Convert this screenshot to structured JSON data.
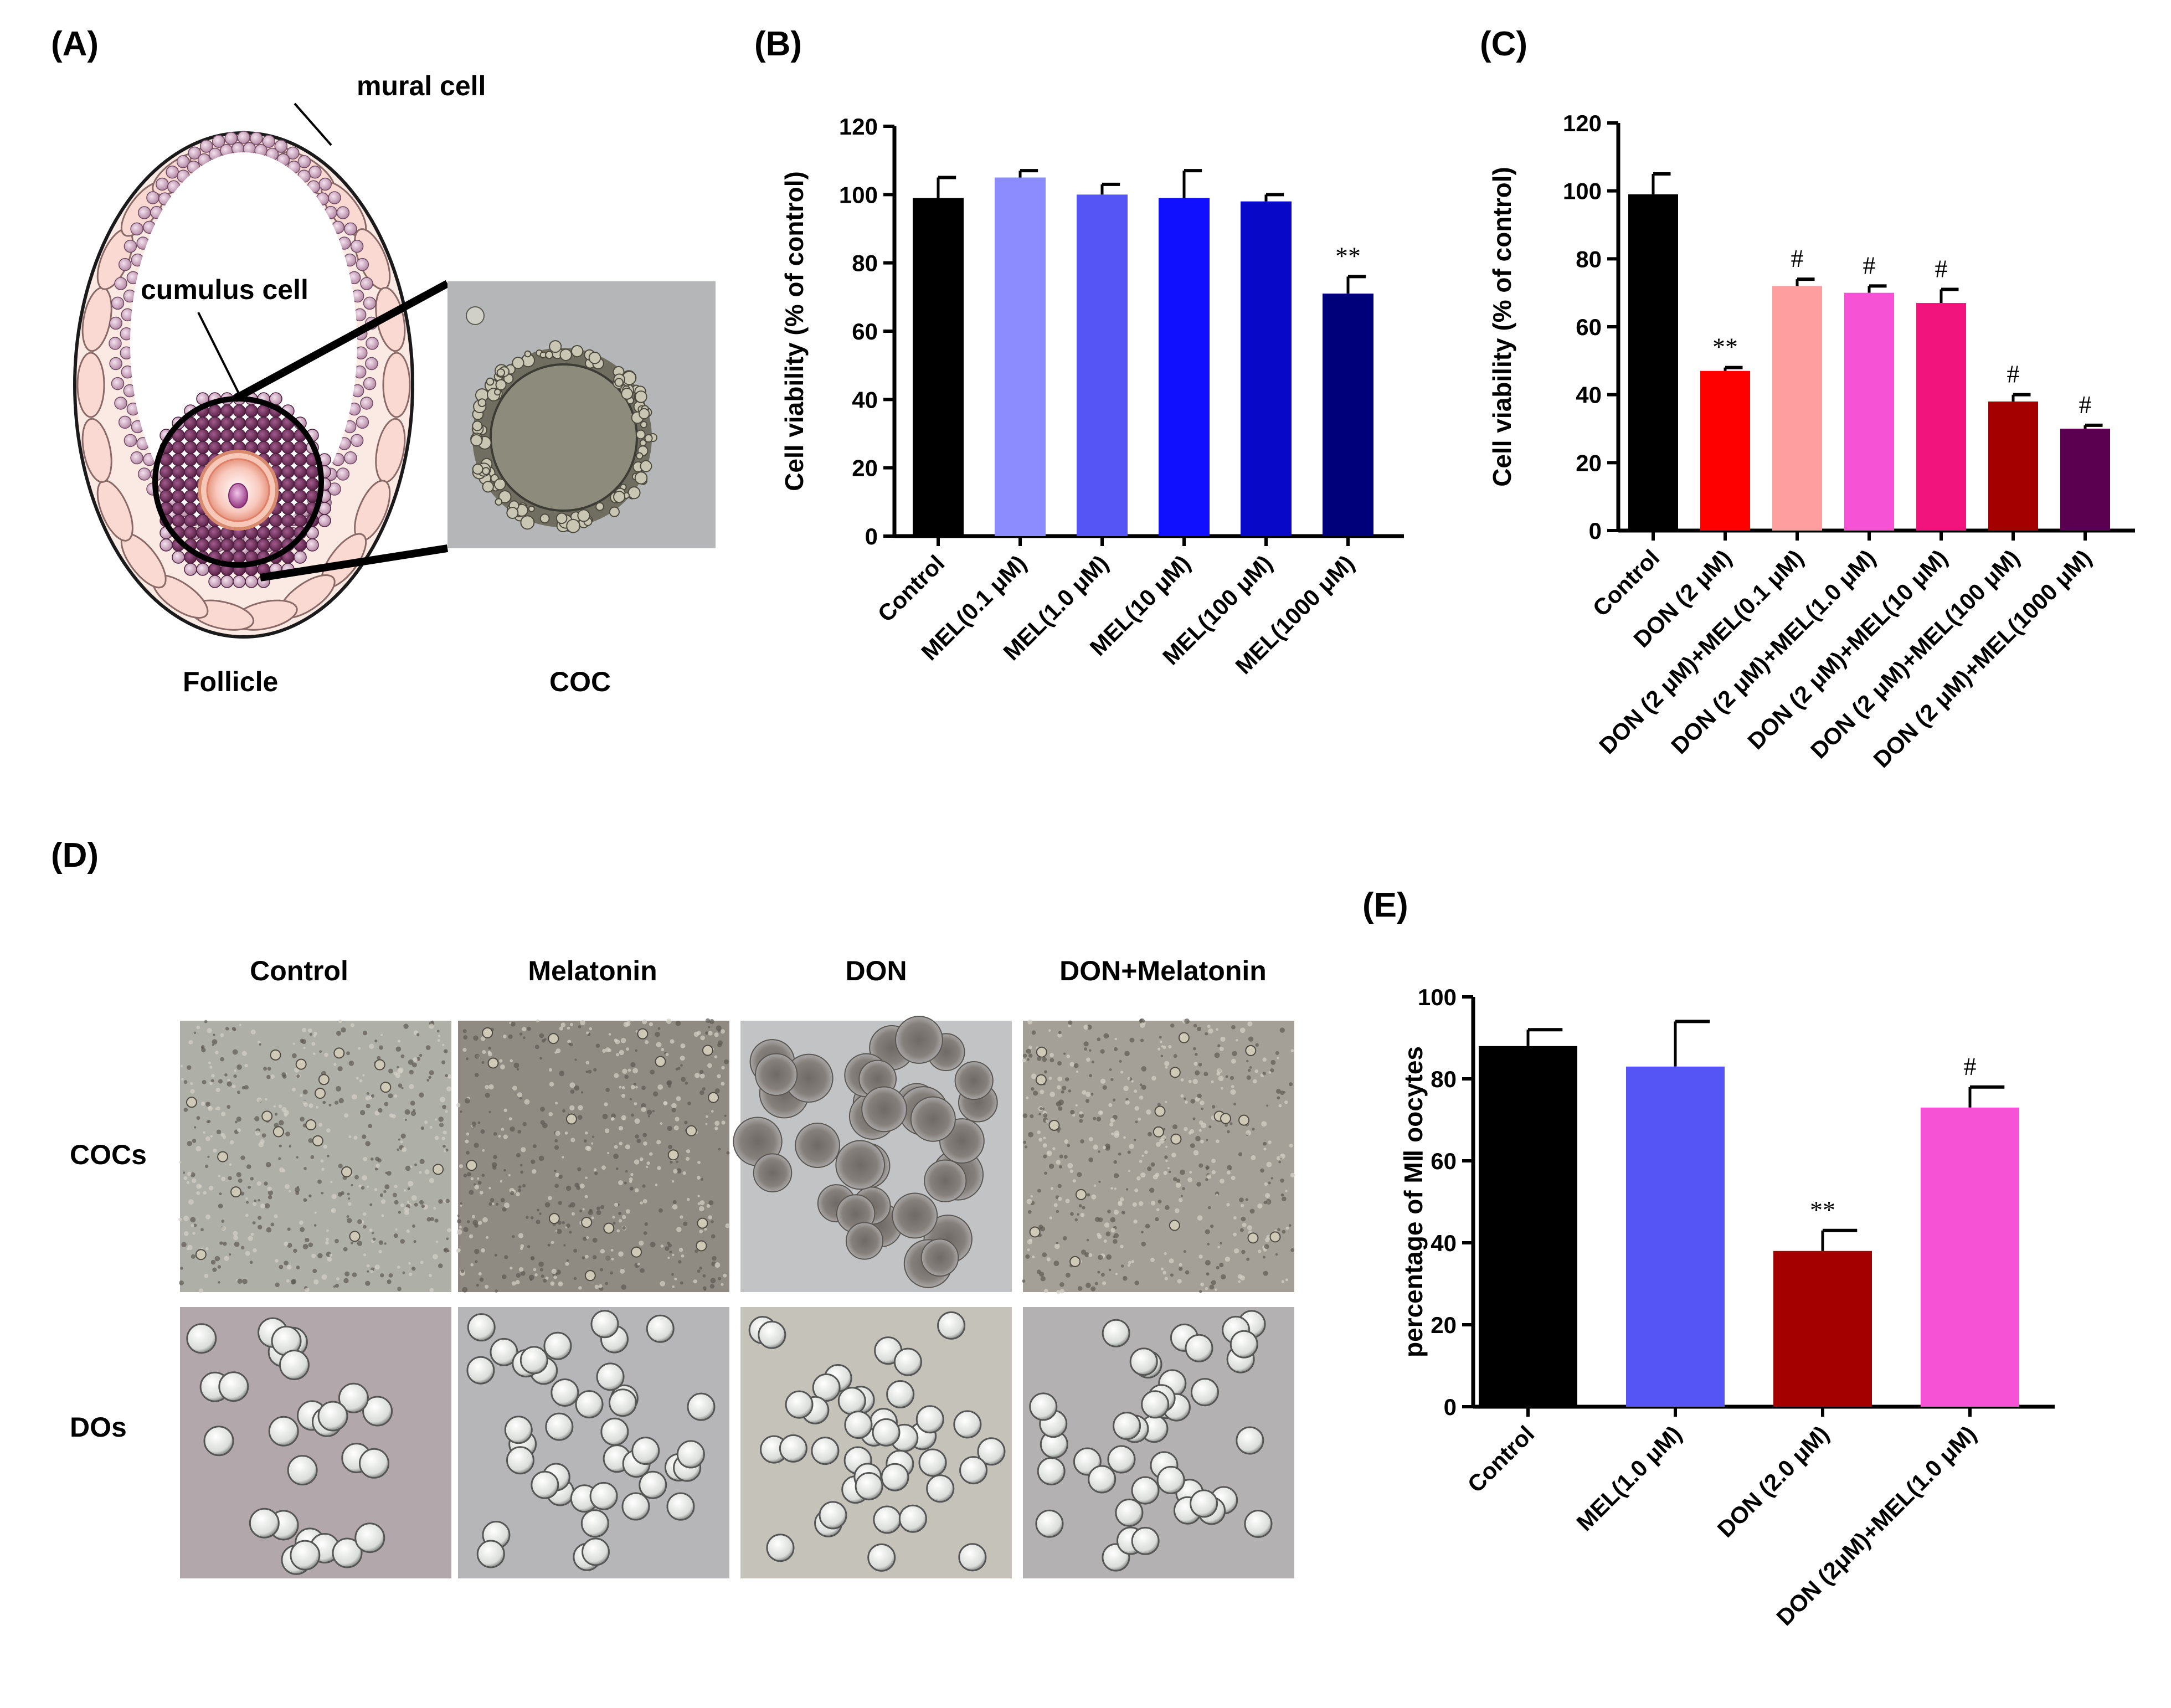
{
  "panels": {
    "A": {
      "label": "(A)",
      "mural_label": "mural cell",
      "cumulus_label": "cumulus cell",
      "follicle_caption": "Follicle",
      "coc_caption": "COC"
    },
    "B": {
      "label": "(B)"
    },
    "C": {
      "label": "(C)"
    },
    "D": {
      "label": "(D)",
      "columns": [
        "Control",
        "Melatonin",
        "DON",
        "DON+Melatonin"
      ],
      "rows": [
        "COCs",
        "DOs"
      ]
    },
    "E": {
      "label": "(E)"
    }
  },
  "chart_data": [
    {
      "panel": "B",
      "type": "bar",
      "ylabel": "Cell viability (% of control)",
      "ylim": [
        0,
        120
      ],
      "yticks": [
        0,
        20,
        40,
        60,
        80,
        100,
        120
      ],
      "categories": [
        "Control",
        "MEL(0.1 μM)",
        "MEL(1.0 μM)",
        "MEL(10 μM)",
        "MEL(100 μM)",
        "MEL(1000 μM)"
      ],
      "values": [
        99,
        105,
        100,
        99,
        98,
        71
      ],
      "errors": [
        6,
        2,
        3,
        8,
        2,
        5
      ],
      "marks": [
        "",
        "",
        "",
        "",
        "",
        "**"
      ],
      "colors": [
        "#000000",
        "#8c8cff",
        "#5555f5",
        "#1010ff",
        "#0808c8",
        "#00007a"
      ]
    },
    {
      "panel": "C",
      "type": "bar",
      "ylabel": "Cell viability (% of control)",
      "ylim": [
        0,
        120
      ],
      "yticks": [
        0,
        20,
        40,
        60,
        80,
        100,
        120
      ],
      "categories": [
        "Control",
        "DON (2 μM)",
        "DON (2 μM)+MEL(0.1 μM)",
        "DON (2 μM)+MEL(1.0 μM)",
        "DON (2 μM)+MEL(10 μM)",
        "DON (2 μM)+MEL(100 μM)",
        "DON (2 μM)+MEL(1000 μM)"
      ],
      "values": [
        99,
        47,
        72,
        70,
        67,
        38,
        30
      ],
      "errors": [
        6,
        1,
        2,
        2,
        4,
        2,
        1
      ],
      "marks": [
        "",
        "**",
        "#",
        "#",
        "#",
        "#",
        "#"
      ],
      "colors": [
        "#000000",
        "#ff0000",
        "#ff9e9e",
        "#f552d5",
        "#f0147c",
        "#a50000",
        "#5b0050"
      ]
    },
    {
      "panel": "E",
      "type": "bar",
      "ylabel": "percentage of MⅡ oocytes",
      "ylim": [
        0,
        100
      ],
      "yticks": [
        0,
        20,
        40,
        60,
        80,
        100
      ],
      "categories": [
        "Control",
        "MEL(1.0 μM)",
        "DON (2.0 μM)",
        "DON (2μM)+MEL(1.0 μM)"
      ],
      "values": [
        88,
        83,
        38,
        73
      ],
      "errors": [
        4,
        11,
        5,
        5
      ],
      "marks": [
        "",
        "",
        "**",
        "#"
      ],
      "colors": [
        "#000000",
        "#5555f5",
        "#a50000",
        "#f552d5"
      ]
    }
  ]
}
